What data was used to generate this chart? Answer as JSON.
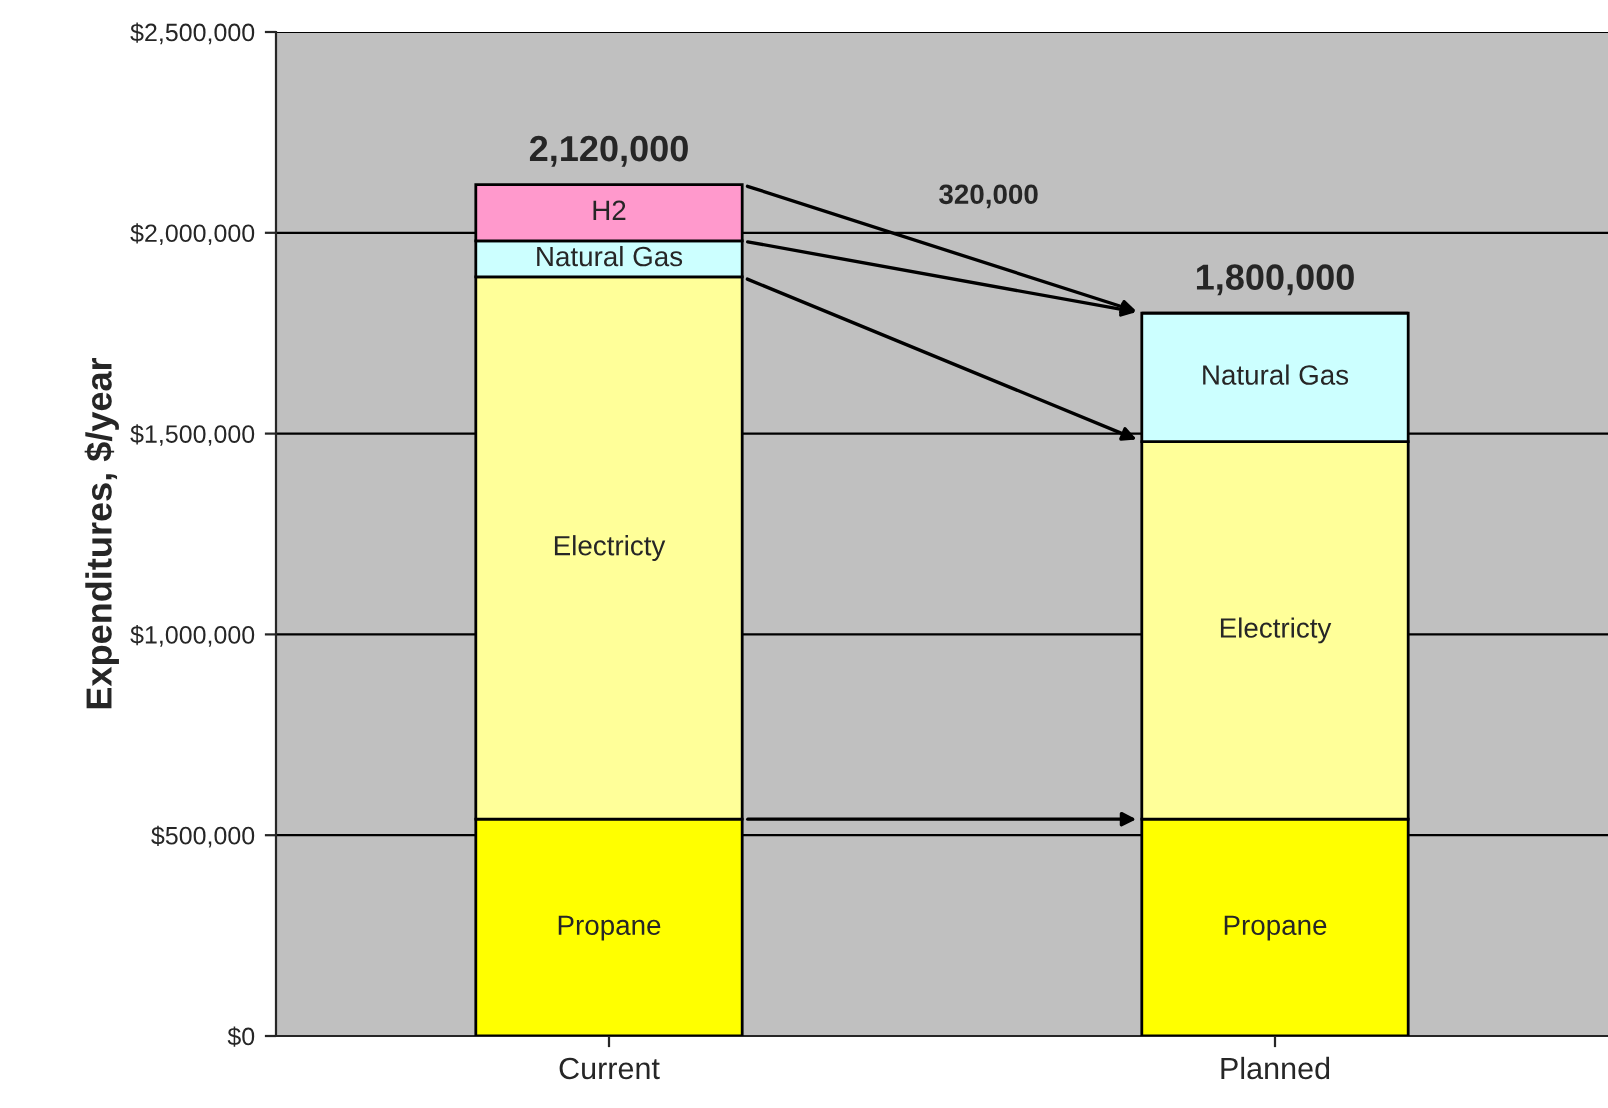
{
  "chart_data": {
    "type": "bar",
    "stacked": true,
    "ylabel": "Expenditures, $/year",
    "categories": [
      "Current",
      "Planned"
    ],
    "series": [
      {
        "name": "Propane",
        "color": "#ffff00",
        "values": [
          540000,
          540000
        ]
      },
      {
        "name": "Electricty",
        "color": "#ffff99",
        "values": [
          1350000,
          940000
        ]
      },
      {
        "name": "Natural Gas",
        "color": "#ccffff",
        "values": [
          90000,
          320000
        ]
      },
      {
        "name": "H2",
        "color": "#ff99cc",
        "values": [
          140000,
          null
        ]
      }
    ],
    "totals": [
      "2,120,000",
      "1,800,000"
    ],
    "annotations": [
      "320,000"
    ],
    "ylim": [
      0,
      2500000
    ],
    "yticks": [
      {
        "value": 0,
        "label": "$0"
      },
      {
        "value": 500000,
        "label": "$500,000"
      },
      {
        "value": 1000000,
        "label": "$1,000,000"
      },
      {
        "value": 1500000,
        "label": "$1,500,000"
      },
      {
        "value": 2000000,
        "label": "$2,000,000"
      },
      {
        "value": 2500000,
        "label": "$2,500,000"
      }
    ],
    "grid": "y",
    "legend": false
  }
}
